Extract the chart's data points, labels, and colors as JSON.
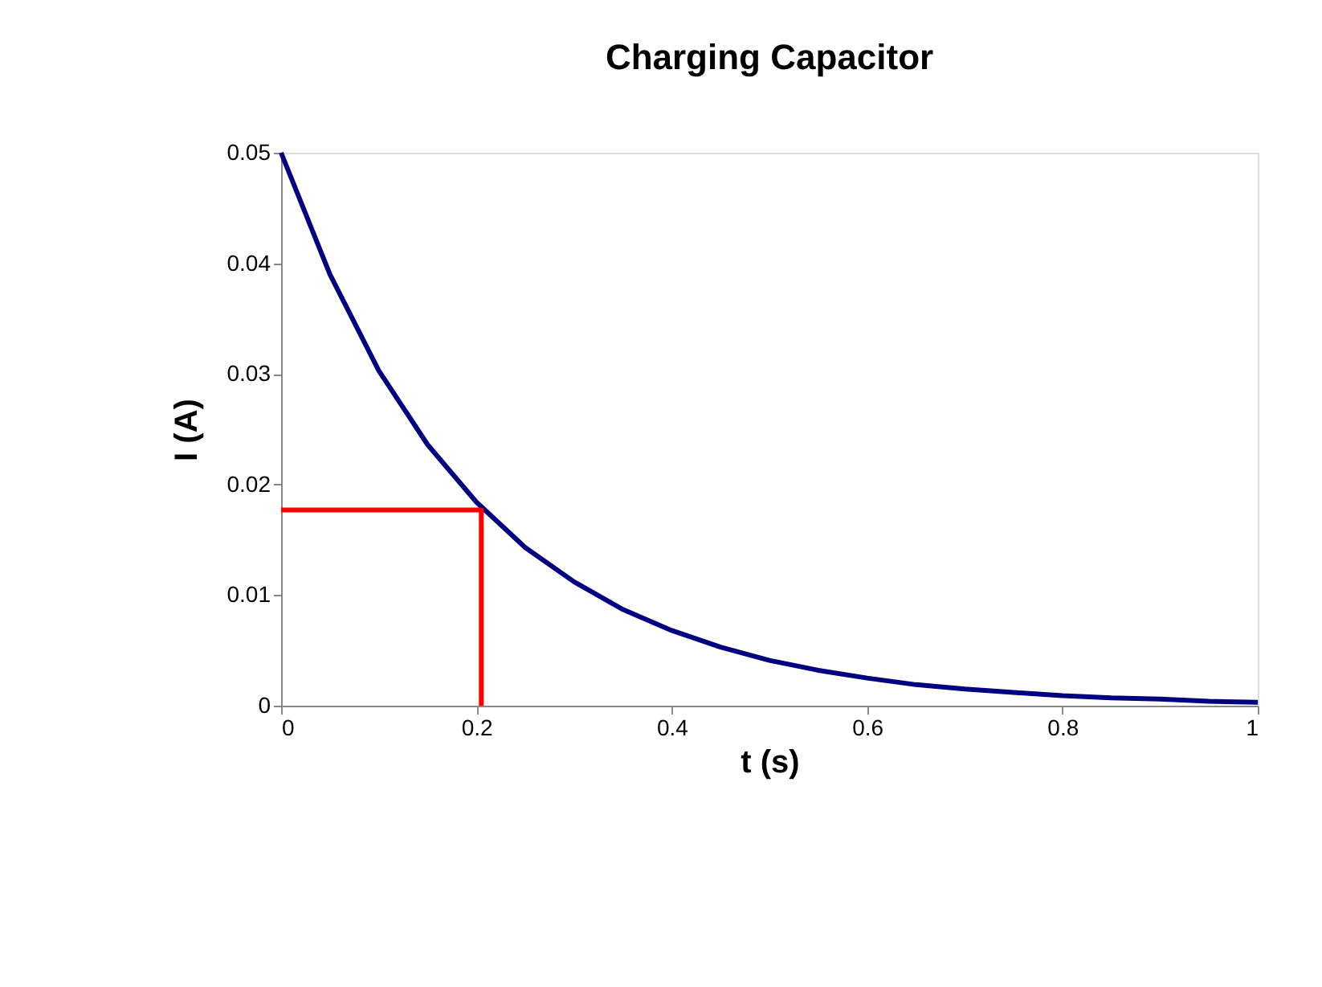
{
  "chart_data": {
    "type": "line",
    "title": "Charging Capacitor",
    "xlabel": "t (s)",
    "ylabel": "I (A)",
    "xlim": [
      0,
      1
    ],
    "xticks": [
      0,
      0.2,
      0.4,
      0.6,
      0.8,
      1
    ],
    "ylim": [
      0,
      0.05
    ],
    "yticks": [
      0,
      0.01,
      0.02,
      0.03,
      0.04,
      0.05
    ],
    "grid": false,
    "marker": "none",
    "line_style": "solid",
    "series": [
      {
        "color": "#000080",
        "x": [
          0,
          0.05,
          0.1,
          0.15,
          0.2,
          0.25,
          0.3,
          0.35,
          0.4,
          0.45,
          0.5,
          0.55,
          0.6,
          0.65,
          0.7,
          0.75,
          0.8,
          0.85,
          0.9,
          0.95,
          1
        ],
        "values": [
          0.05,
          0.039,
          0.0303,
          0.0236,
          0.0184,
          0.0143,
          0.0112,
          0.0087,
          0.0068,
          0.0053,
          0.0041,
          0.0032,
          0.0025,
          0.0019,
          0.0015,
          0.0012,
          0.0009,
          0.0007,
          0.0006,
          0.0004,
          0.0003
        ]
      },
      {
        "color": "#ff0000",
        "x": [
          0,
          0.205,
          0.205
        ],
        "values": [
          0.0177,
          0.0177,
          0
        ]
      }
    ]
  }
}
